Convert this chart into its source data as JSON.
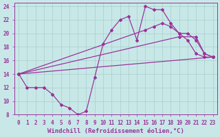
{
  "xlabel": "Windchill (Refroidissement éolien,°C)",
  "xlim": [
    -0.5,
    23.5
  ],
  "ylim": [
    8,
    24.5
  ],
  "yticks": [
    8,
    10,
    12,
    14,
    16,
    18,
    20,
    22,
    24
  ],
  "xticks": [
    0,
    1,
    2,
    3,
    4,
    5,
    6,
    7,
    8,
    9,
    10,
    11,
    12,
    13,
    14,
    15,
    16,
    17,
    18,
    19,
    20,
    21,
    22,
    23
  ],
  "bg_color": "#c8e8e8",
  "line_color": "#993399",
  "grid_color": "#aacccc",
  "lines": [
    {
      "x": [
        0,
        1,
        2,
        3,
        4,
        5,
        6,
        7,
        8,
        9,
        10,
        11,
        12,
        13,
        14,
        15,
        16,
        17,
        18,
        19,
        20,
        21,
        22,
        23
      ],
      "y": [
        14,
        12,
        12,
        12,
        11,
        9.5,
        9,
        8,
        8.5,
        13.5,
        18.5,
        20.5,
        22,
        22.5,
        19,
        24,
        23.5,
        23.5,
        21.5,
        20,
        19,
        17,
        16.5,
        16.5
      ]
    },
    {
      "x": [
        0,
        23
      ],
      "y": [
        14,
        16.5
      ]
    },
    {
      "x": [
        0,
        19,
        21,
        22,
        23
      ],
      "y": [
        14,
        19.5,
        19.5,
        17,
        16.5
      ]
    },
    {
      "x": [
        0,
        15,
        16,
        17,
        18,
        19,
        20,
        21,
        22,
        23
      ],
      "y": [
        14,
        20.5,
        21,
        21.5,
        21,
        20,
        20,
        19,
        17,
        16.5
      ]
    }
  ],
  "marker": "D",
  "markersize": 2.0,
  "linewidth": 0.9,
  "tick_fontsize": 5.5,
  "label_fontsize": 6.5
}
